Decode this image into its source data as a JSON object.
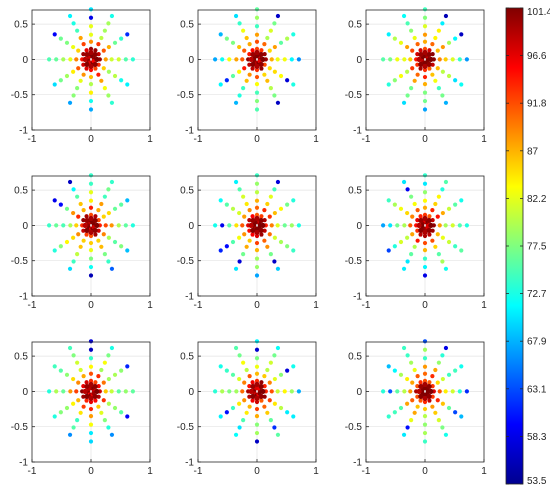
{
  "chart_data": {
    "type": "scatter",
    "layout": "3x3 small multiples",
    "subplots": 9,
    "title": "",
    "xlabel": "",
    "ylabel": "",
    "xlim": [
      -1,
      1
    ],
    "ylim": [
      -1,
      0.7
    ],
    "xticks": [
      -1,
      0,
      1
    ],
    "xtick_labels": [
      "-1",
      "0",
      "1"
    ],
    "yticks": [
      0.5,
      0,
      -0.5,
      -1
    ],
    "ytick_labels": [
      "0.5",
      "0",
      "-0.5",
      "-1"
    ],
    "grid": true,
    "marker": "filled circle",
    "rays": 12,
    "points_per_ray": 7,
    "ray_angles_deg": [
      0,
      30,
      60,
      90,
      120,
      150,
      180,
      210,
      240,
      270,
      300,
      330
    ],
    "ray_radii": [
      0.05,
      0.15,
      0.25,
      0.35,
      0.47,
      0.59,
      0.71
    ],
    "ray_value_profile": [
      100.5,
      96,
      90,
      84,
      79,
      75,
      71
    ],
    "core_ring_values": [
      101.4,
      100.8,
      99.6,
      100.2,
      98.7,
      101.0,
      99.2,
      100.6
    ],
    "colorbar": {
      "colormap": "jet",
      "min": 53.5,
      "max": 101.4,
      "tick_labels": [
        "101.4",
        "96.6",
        "91.8",
        "87",
        "82.2",
        "77.5",
        "72.7",
        "67.9",
        "63.1",
        "58.3",
        "53.5"
      ]
    }
  }
}
